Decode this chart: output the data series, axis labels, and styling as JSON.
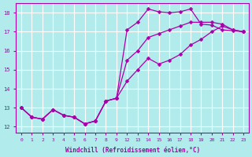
{
  "xlabel": "Windchill (Refroidissement éolien,°C)",
  "bg_color": "#b2ebeb",
  "grid_color": "#ffffff",
  "line_color": "#aa00aa",
  "xlim": [
    -0.5,
    21.5
  ],
  "ylim": [
    11.7,
    18.5
  ],
  "xtick_labels": [
    "0",
    "1",
    "2",
    "3",
    "4",
    "5",
    "6",
    "7",
    "8",
    "9",
    "12",
    "13",
    "14",
    "15",
    "16",
    "17",
    "18",
    "19",
    "20",
    "21",
    "22",
    "23"
  ],
  "yticks": [
    12,
    13,
    14,
    15,
    16,
    17,
    18
  ],
  "line1_y": [
    13.0,
    12.5,
    12.4,
    12.9,
    12.6,
    12.5,
    12.15,
    12.3,
    13.35,
    13.5,
    17.1,
    17.5,
    18.2,
    18.05,
    18.0,
    18.05,
    18.2,
    17.4,
    17.35,
    17.1,
    17.05,
    17.0
  ],
  "line2_y": [
    13.0,
    12.5,
    12.4,
    12.9,
    12.6,
    12.5,
    12.15,
    12.3,
    13.35,
    13.5,
    15.5,
    16.0,
    16.7,
    16.9,
    17.1,
    17.3,
    17.5,
    17.5,
    17.5,
    17.4,
    17.1,
    17.0
  ],
  "line3_y": [
    13.0,
    12.5,
    12.4,
    12.9,
    12.6,
    12.5,
    12.15,
    12.3,
    13.35,
    13.5,
    14.4,
    15.0,
    15.6,
    15.3,
    15.5,
    15.8,
    16.3,
    16.6,
    17.0,
    17.3,
    17.1,
    17.0
  ]
}
